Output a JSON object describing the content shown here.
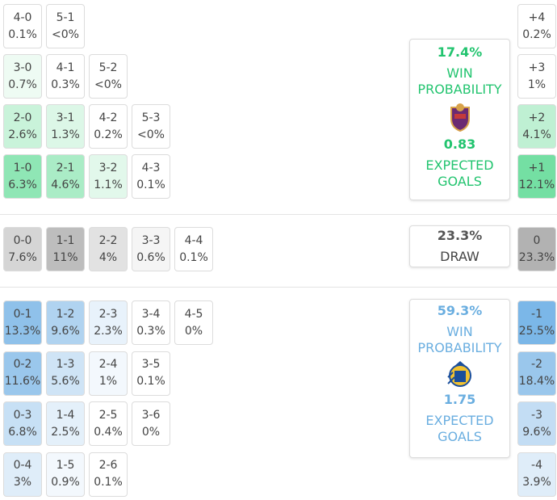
{
  "home": {
    "rows": [
      [
        {
          "score": "4-0",
          "pct": "0.1%",
          "color": "#ffffff"
        },
        {
          "score": "5-1",
          "pct": "<0%",
          "color": "#ffffff"
        }
      ],
      [
        {
          "score": "3-0",
          "pct": "0.7%",
          "color": "#eefbf3"
        },
        {
          "score": "4-1",
          "pct": "0.3%",
          "color": "#ffffff"
        },
        {
          "score": "5-2",
          "pct": "<0%",
          "color": "#ffffff"
        }
      ],
      [
        {
          "score": "2-0",
          "pct": "2.6%",
          "color": "#c9f3da"
        },
        {
          "score": "3-1",
          "pct": "1.3%",
          "color": "#dcf7e7"
        },
        {
          "score": "4-2",
          "pct": "0.2%",
          "color": "#ffffff"
        },
        {
          "score": "5-3",
          "pct": "<0%",
          "color": "#ffffff"
        }
      ],
      [
        {
          "score": "1-0",
          "pct": "6.3%",
          "color": "#8fe6b5"
        },
        {
          "score": "2-1",
          "pct": "4.6%",
          "color": "#aaecc6"
        },
        {
          "score": "3-2",
          "pct": "1.1%",
          "color": "#e2f8eb"
        },
        {
          "score": "4-3",
          "pct": "0.1%",
          "color": "#ffffff"
        }
      ]
    ],
    "margins": [
      {
        "label": "+4",
        "pct": "0.2%",
        "color": "#ffffff"
      },
      {
        "label": "+3",
        "pct": "1%",
        "color": "#ffffff"
      },
      {
        "label": "+2",
        "pct": "4.1%",
        "color": "#bff0d3"
      },
      {
        "label": "+1",
        "pct": "12.1%",
        "color": "#74dfa3"
      }
    ],
    "summary": {
      "win_pct": "17.4%",
      "win_label": "WIN PROBABILITY",
      "xg": "0.83",
      "xg_label": "EXPECTED GOALS"
    }
  },
  "draw": {
    "row": [
      {
        "score": "0-0",
        "pct": "7.6%",
        "color": "#d5d5d5"
      },
      {
        "score": "1-1",
        "pct": "11%",
        "color": "#bdbdbd"
      },
      {
        "score": "2-2",
        "pct": "4%",
        "color": "#e2e2e2"
      },
      {
        "score": "3-3",
        "pct": "0.6%",
        "color": "#f5f5f5"
      },
      {
        "score": "4-4",
        "pct": "0.1%",
        "color": "#ffffff"
      }
    ],
    "margin": {
      "label": "0",
      "pct": "23.3%",
      "color": "#b2b2b2"
    },
    "summary": {
      "pct": "23.3%",
      "label": "DRAW"
    }
  },
  "away": {
    "rows": [
      [
        {
          "score": "0-1",
          "pct": "13.3%",
          "color": "#8fc1ea"
        },
        {
          "score": "1-2",
          "pct": "9.6%",
          "color": "#b0d3f0"
        },
        {
          "score": "2-3",
          "pct": "2.3%",
          "color": "#e8f2fb"
        },
        {
          "score": "3-4",
          "pct": "0.3%",
          "color": "#ffffff"
        },
        {
          "score": "4-5",
          "pct": "0%",
          "color": "#ffffff"
        }
      ],
      [
        {
          "score": "0-2",
          "pct": "11.6%",
          "color": "#9ac7ec"
        },
        {
          "score": "1-3",
          "pct": "5.6%",
          "color": "#cfe4f6"
        },
        {
          "score": "2-4",
          "pct": "1%",
          "color": "#f3f8fd"
        },
        {
          "score": "3-5",
          "pct": "0.1%",
          "color": "#ffffff"
        }
      ],
      [
        {
          "score": "0-3",
          "pct": "6.8%",
          "color": "#c7e0f5"
        },
        {
          "score": "1-4",
          "pct": "2.5%",
          "color": "#e4f0fa"
        },
        {
          "score": "2-5",
          "pct": "0.4%",
          "color": "#ffffff"
        },
        {
          "score": "3-6",
          "pct": "0%",
          "color": "#ffffff"
        }
      ],
      [
        {
          "score": "0-4",
          "pct": "3%",
          "color": "#dfedf9"
        },
        {
          "score": "1-5",
          "pct": "0.9%",
          "color": "#f3f8fd"
        },
        {
          "score": "2-6",
          "pct": "0.1%",
          "color": "#ffffff"
        }
      ]
    ],
    "margins": [
      {
        "label": "-1",
        "pct": "25.5%",
        "color": "#7bb7e8"
      },
      {
        "label": "-2",
        "pct": "18.4%",
        "color": "#9ac7ec"
      },
      {
        "label": "-3",
        "pct": "9.6%",
        "color": "#c3ddf4"
      },
      {
        "label": "-4",
        "pct": "3.9%",
        "color": "#dfedf9"
      }
    ],
    "summary": {
      "win_pct": "59.3%",
      "win_label": "WIN PROBABILITY",
      "xg": "1.75",
      "xg_label": "EXPECTED GOALS"
    }
  }
}
